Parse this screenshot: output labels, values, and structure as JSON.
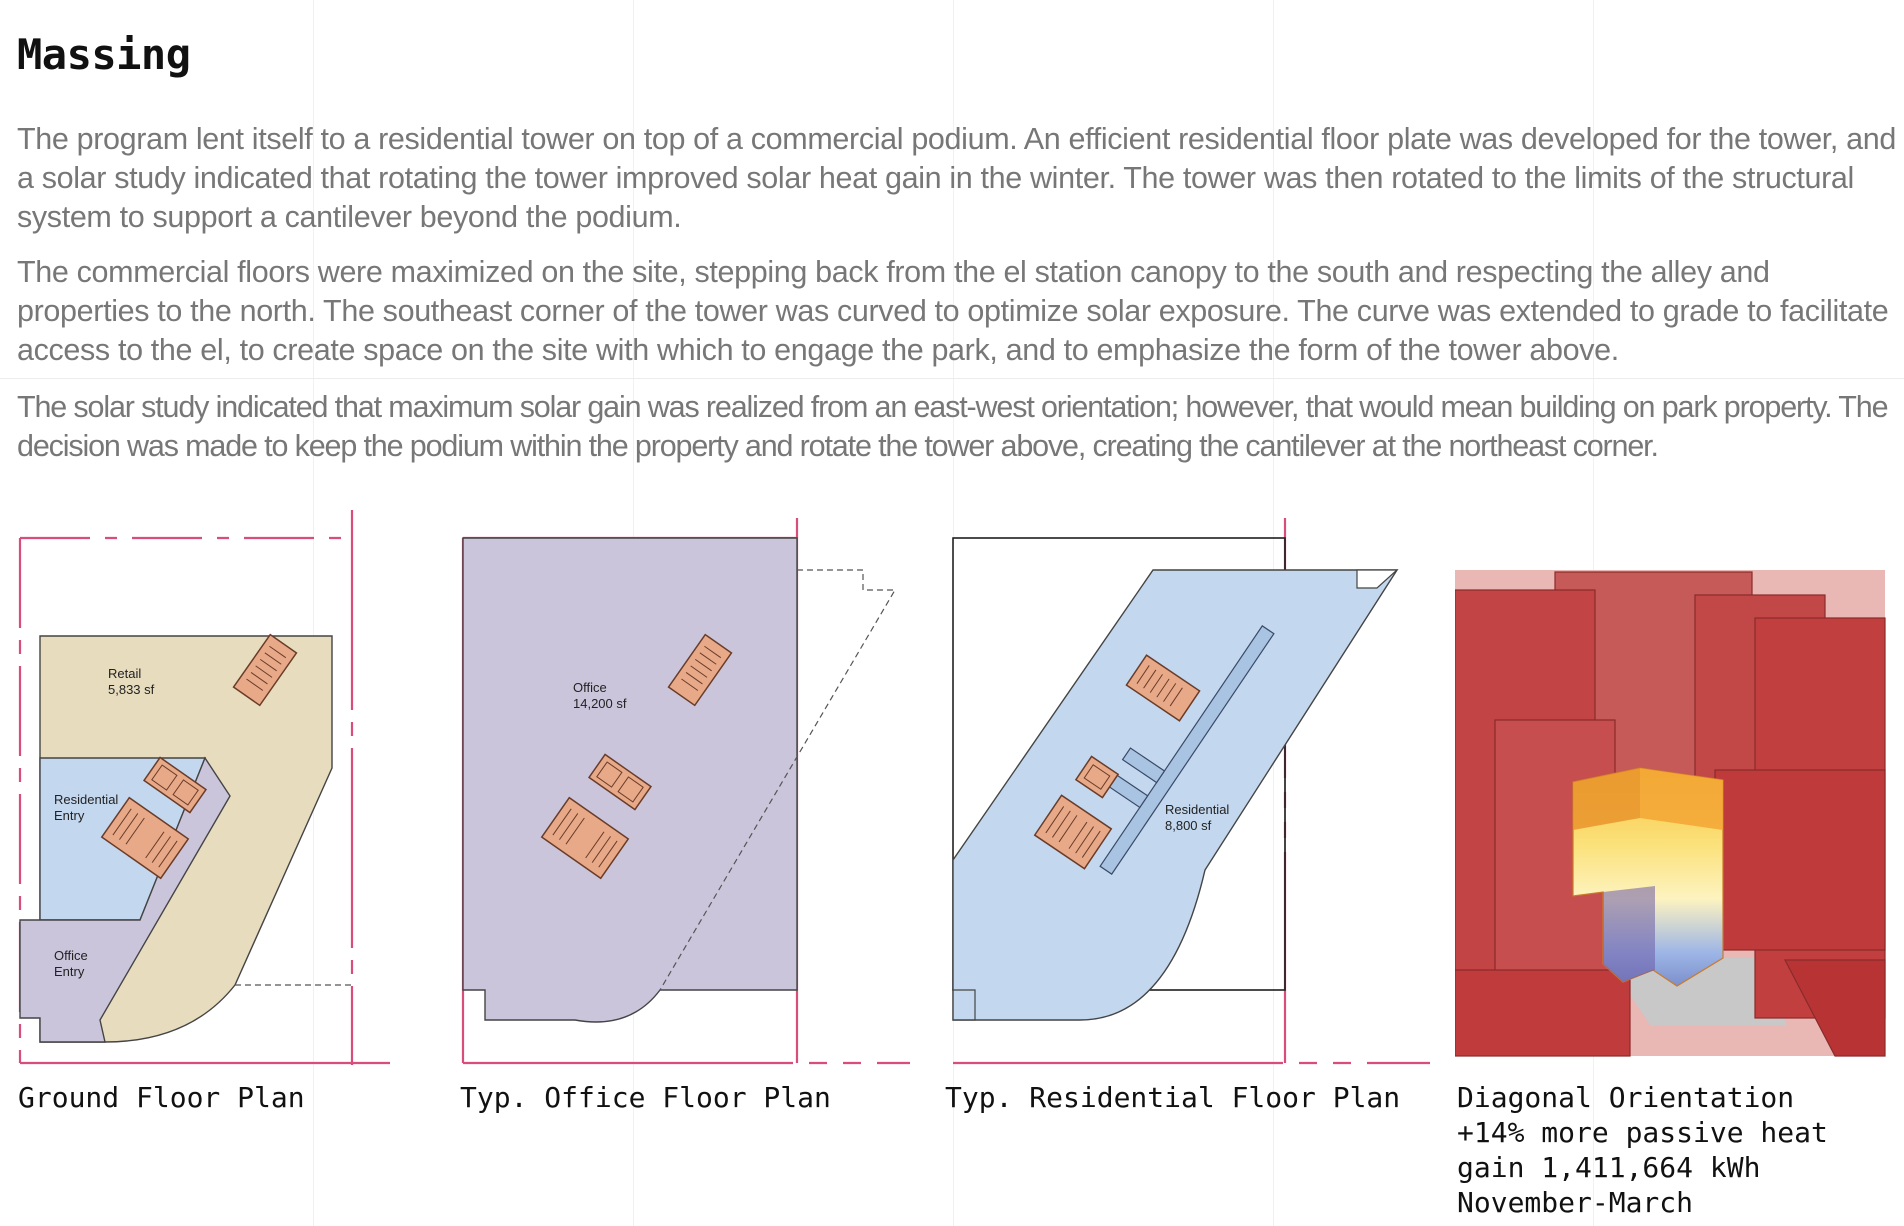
{
  "title": "Massing",
  "paragraphs": [
    "The program lent itself to a residential tower on top of a commercial podium. An efficient residential floor plate was developed for the tower, and a solar study indicated that rotating the tower improved solar heat gain in the winter. The tower was then rotated to the limits of the structural system to support a cantilever beyond the podium.",
    "The commercial floors were maximized on the site, stepping back from the el station canopy to the south and respecting the alley and properties to the north. The southeast corner of the tower was curved to optimize solar exposure. The curve was extended to grade to facilitate access to the el, to create space on the site with which to engage the park, and to emphasize the form of the tower above.",
    "The solar study indicated that maximum solar gain was realized from an east-west orientation; however, that would mean building on park property. The decision was made to keep the podium within the property and rotate the tower above, creating the cantilever at the northeast corner."
  ],
  "plans": {
    "ground": {
      "retail_label": "Retail",
      "retail_area": "5,833 sf",
      "residential_entry_label_1": "Residential",
      "residential_entry_label_2": "Entry",
      "office_entry_label_1": "Office",
      "office_entry_label_2": "Entry",
      "caption": "Ground Floor Plan"
    },
    "office": {
      "label": "Office",
      "area": "14,200 sf",
      "caption": "Typ. Office Floor Plan"
    },
    "residential": {
      "label": "Residential",
      "area": "8,800 sf",
      "caption": "Typ. Residential Floor Plan"
    },
    "solar": {
      "caption": "Diagonal Orientation\n+14% more passive heat\ngain 1,411,664 kWh\nNovember-March"
    }
  },
  "colors": {
    "property_line": "#d94d7a",
    "retail": "#e8dcbf",
    "residential": "#c3d8ef",
    "office": "#cbc5dc",
    "core": "#e7a988",
    "massing_red": "#c64848"
  }
}
